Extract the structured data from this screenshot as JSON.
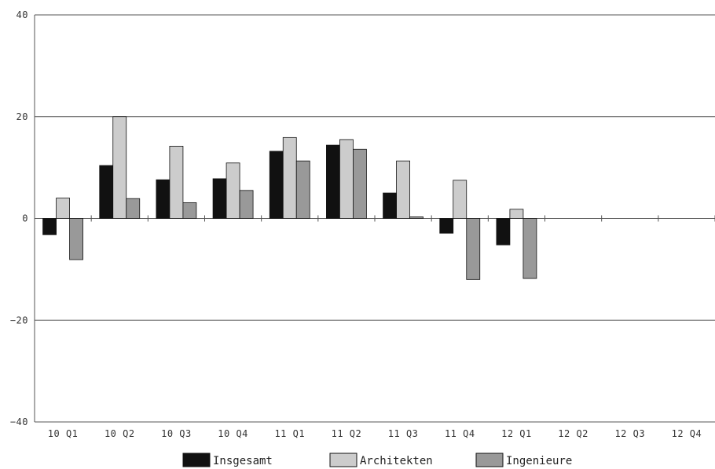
{
  "chart_data": {
    "type": "bar",
    "title": "",
    "xlabel": "",
    "ylabel": "",
    "ylim": [
      -40,
      40
    ],
    "yticks": [
      40,
      20,
      0,
      -20,
      -40
    ],
    "ytick_labels": [
      "40",
      "20",
      "0",
      "−20",
      "−40"
    ],
    "grid": true,
    "legend_position": "bottom",
    "categories": [
      "10 Q1",
      "10 Q2",
      "10 Q3",
      "10 Q4",
      "11 Q1",
      "11 Q2",
      "11 Q3",
      "11 Q4",
      "12 Q1",
      "12 Q2",
      "12 Q3",
      "12 Q4"
    ],
    "series": [
      {
        "name": "Insgesamt",
        "color": "#111111",
        "values": [
          -3.2,
          10.4,
          7.6,
          7.8,
          13.2,
          14.4,
          5.0,
          -2.9,
          -5.2,
          null,
          null,
          null
        ]
      },
      {
        "name": "Architekten",
        "color": "#cccccc",
        "values": [
          4.0,
          20.0,
          14.2,
          10.9,
          15.9,
          15.5,
          11.3,
          7.5,
          1.8,
          null,
          null,
          null
        ]
      },
      {
        "name": "Ingenieure",
        "color": "#999999",
        "values": [
          -8.1,
          3.9,
          3.1,
          5.5,
          11.3,
          13.6,
          0.3,
          -12.0,
          -11.8,
          null,
          null,
          null
        ]
      }
    ]
  }
}
